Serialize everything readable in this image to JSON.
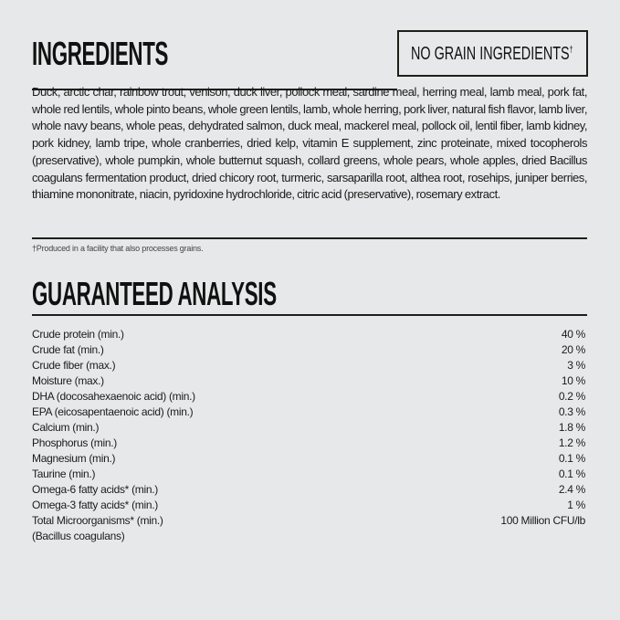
{
  "ingredients": {
    "title": "INGREDIENTS",
    "badge": "NO GRAIN INGREDIENTS",
    "badge_mark": "†",
    "text": "Duck, arctic char, rainbow trout, venison, duck liver, pollock meal, sardine meal, herring meal, lamb meal, pork fat, whole red lentils, whole pinto beans, whole green lentils, lamb, whole herring, pork liver, natural fish flavor, lamb liver, whole navy beans, whole peas, dehydrated salmon, duck meal, mackerel meal, pollock oil, lentil fiber, lamb kidney, pork kidney, lamb tripe, whole cranberries, dried kelp, vitamin E supplement, zinc proteinate, mixed tocopherols (preservative), whole pumpkin, whole butternut squash, collard greens, whole pears, whole apples, dried Bacillus coagulans fermentation product, dried chicory root, turmeric, sarsaparilla root, althea root, rosehips, juniper berries, thiamine mononitrate, niacin, pyridoxine hydrochloride, citric acid (preservative), rosemary extract.",
    "footnote": "†Produced in a facility that also processes grains."
  },
  "analysis": {
    "title": "GUARANTEED ANALYSIS",
    "rows": [
      {
        "label": "Crude protein (min.)",
        "value": "40 %"
      },
      {
        "label": "Crude fat (min.)",
        "value": "20 %"
      },
      {
        "label": "Crude fiber (max.)",
        "value": "3 %"
      },
      {
        "label": "Moisture (max.)",
        "value": "10 %"
      },
      {
        "label": "DHA (docosahexaenoic acid) (min.)",
        "value": "0.2 %"
      },
      {
        "label": "EPA (eicosapentaenoic acid) (min.)",
        "value": "0.3 %"
      },
      {
        "label": "Calcium (min.)",
        "value": "1.8 %"
      },
      {
        "label": "Phosphorus (min.)",
        "value": "1.2 %"
      },
      {
        "label": "Magnesium (min.)",
        "value": "0.1 %"
      },
      {
        "label": "Taurine (min.)",
        "value": "0.1 %"
      },
      {
        "label": "Omega-6 fatty acids* (min.)",
        "value": "2.4 %"
      },
      {
        "label": "Omega-3 fatty acids* (min.)",
        "value": "1 %"
      },
      {
        "label": "Total Microorganisms* (min.)",
        "value": "100 Million CFU/lb"
      },
      {
        "label": "(Bacillus coagulans)",
        "value": ""
      }
    ]
  }
}
